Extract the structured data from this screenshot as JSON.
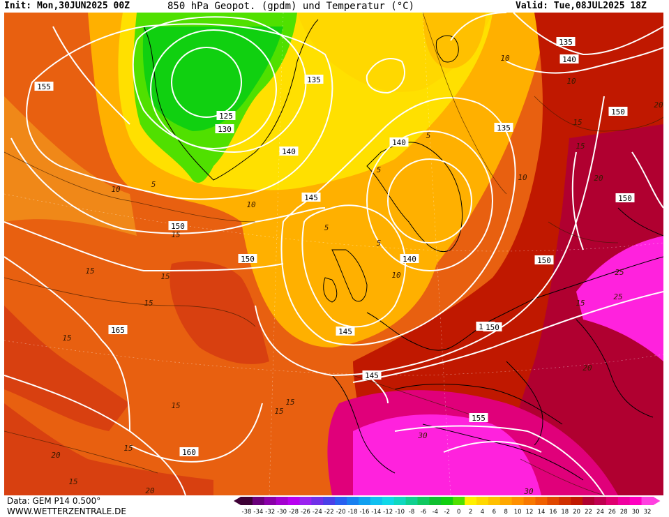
{
  "header": {
    "init_text": "Init: Mon,30JUN2025 00Z",
    "title": "850 hPa Geopot. (gpdm) und Temperatur (°C)",
    "valid_text": "Valid: Tue,08JUL2025 18Z"
  },
  "footer": {
    "data_source": "Data: GEM P14 0.500°",
    "website": "WWW.WETTERZENTRALE.DE"
  },
  "legend": {
    "ticks": [
      "-38",
      "-34",
      "-32",
      "-30",
      "-28",
      "-26",
      "-24",
      "-22",
      "-20",
      "-18",
      "-16",
      "-14",
      "-12",
      "-10",
      "-8",
      "-6",
      "-4",
      "-2",
      "0",
      "2",
      "4",
      "6",
      "8",
      "10",
      "12",
      "14",
      "16",
      "18",
      "20",
      "22",
      "24",
      "26",
      "28",
      "30",
      "32"
    ],
    "colors": [
      "#3d0035",
      "#6a007a",
      "#8a00a8",
      "#a400d0",
      "#b800f0",
      "#9a22f0",
      "#7030e8",
      "#4a40e8",
      "#2860f0",
      "#1880f0",
      "#10a0f0",
      "#10c0f0",
      "#10d8e8",
      "#10d8c0",
      "#10d090",
      "#10c860",
      "#10c030",
      "#10d010",
      "#50e000",
      "#fff000",
      "#ffd800",
      "#ffc000",
      "#ffa800",
      "#ff9000",
      "#f87800",
      "#f06000",
      "#e04800",
      "#d03000",
      "#c01800",
      "#b00030",
      "#c00050",
      "#e00070",
      "#f000a0",
      "#ff00c0",
      "#ff40e0"
    ]
  },
  "map": {
    "height_labels": [
      "125",
      "130",
      "135",
      "135",
      "135",
      "140",
      "140",
      "140",
      "140",
      "145",
      "145",
      "145",
      "145",
      "150",
      "150",
      "150",
      "150",
      "150",
      "150",
      "155",
      "155",
      "160",
      "165"
    ],
    "temperature_labels": [
      "5",
      "5",
      "5",
      "5",
      "5",
      "10",
      "10",
      "10",
      "10",
      "10",
      "10",
      "15",
      "15",
      "15",
      "15",
      "15",
      "15",
      "15",
      "15",
      "15",
      "15",
      "15",
      "15",
      "15",
      "20",
      "20",
      "20",
      "20",
      "20",
      "25",
      "25",
      "30",
      "30"
    ],
    "palette": {
      "pink": "#ff22dd",
      "magenta": "#e0007a",
      "crimson": "#b80030",
      "red_orange": "#d84010",
      "orange": "#e86010",
      "light_orange": "#f08818",
      "amber": "#ffb000",
      "yellow": "#ffe000",
      "light_green": "#50e000",
      "green": "#10d010",
      "isohypse": "#ffffff",
      "coastline": "#000000"
    }
  }
}
